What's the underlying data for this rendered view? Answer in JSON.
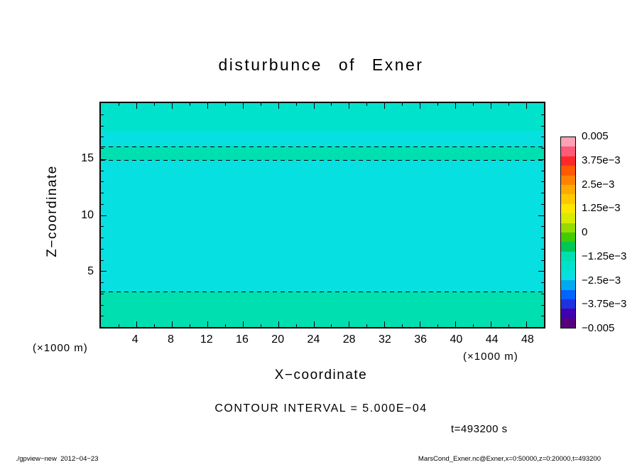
{
  "title": "disturbunce of Exner",
  "annotations": {
    "contour_interval": "CONTOUR INTERVAL = 5.000E−04",
    "time": "t=493200 s"
  },
  "footer": {
    "left": "./gpview−new  2012−04−23",
    "right": "MarsCond_Exner.nc@Exner,x=0:50000,z=0:20000,t=493200"
  },
  "axes": {
    "x": {
      "label": "X−coordinate",
      "unit": "(×1000 m)",
      "min": 0,
      "max": 50,
      "tick_labels": [
        4,
        8,
        12,
        16,
        20,
        24,
        28,
        32,
        36,
        40,
        44,
        48
      ],
      "minor_step": 2,
      "major_step": 4
    },
    "y": {
      "label": "Z−coordinate",
      "unit": "(×1000 m)",
      "min": 0,
      "max": 20,
      "tick_labels": [
        5,
        10,
        15
      ],
      "minor_step": 1,
      "major_step": 5
    }
  },
  "chart_data": {
    "type": "heatmap",
    "title": "disturbunce of Exner",
    "xlabel": "X−coordinate (×1000 m)",
    "ylabel": "Z−coordinate (×1000 m)",
    "xlim": [
      0,
      50
    ],
    "ylim": [
      0,
      20
    ],
    "contour_interval": "5.000E-04",
    "time_s": 493200,
    "description": "Horizontally uniform Exner-function disturbance; slightly negative cyan field with greener bands near z=0–3.2 and z=14.9–16.1 (×1000 m)",
    "background_color": "#06e0e0",
    "bands": [
      {
        "z_range": [
          17.5,
          20.0
        ],
        "color": "#00e2cc",
        "approx_value": "≈ −1.0e-3"
      },
      {
        "z_range": [
          14.9,
          16.1
        ],
        "color": "#00dfb0",
        "approx_value": "−5e-4 … 0"
      },
      {
        "z_range": [
          0.0,
          3.2
        ],
        "color": "#00dfb0",
        "approx_value": "−5e-4 … 0"
      }
    ],
    "contour_lines_z": [
      16.1,
      14.9,
      3.2
    ],
    "contour_line_style": "dashed (negative contours)"
  },
  "colorbar": {
    "min": -0.005,
    "max": 0.005,
    "labels": [
      "0.005",
      "3.75e−3",
      "2.5e−3",
      "1.25e−3",
      "0",
      "−1.25e−3",
      "−2.5e−3",
      "−3.75e−3",
      "−0.005"
    ],
    "values": [
      0.005,
      0.00375,
      0.0025,
      0.00125,
      0,
      -0.00125,
      -0.0025,
      -0.00375,
      -0.005
    ],
    "segments": 20,
    "colors_top_to_bottom": [
      "#ffa0b4",
      "#ff5a78",
      "#ff2828",
      "#ff5a00",
      "#ff8200",
      "#ffaa00",
      "#ffc800",
      "#ffe600",
      "#d7eb00",
      "#96dc00",
      "#41cd00",
      "#00c855",
      "#00dfb0",
      "#00e2cc",
      "#06e0e0",
      "#00aaf0",
      "#0064ff",
      "#1e32e1",
      "#4100af",
      "#55007d"
    ]
  }
}
